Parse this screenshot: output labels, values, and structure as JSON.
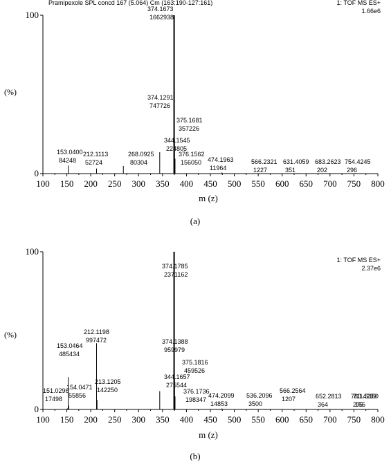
{
  "chart_data": [
    {
      "type": "bar",
      "panel_label": "(a)",
      "header_left": "Pramipexole SPL concd 167 (5.064) Cm (163:190-127:161)",
      "header_right": "1: TOF MS ES+",
      "header_right_sub": "1.66e6",
      "xlabel": "m (z)",
      "ylabel": "(%)",
      "xlim": [
        100,
        800
      ],
      "ylim": [
        0,
        100
      ],
      "xticks": [
        "100",
        "150",
        "200",
        "250",
        "300",
        "350",
        "400",
        "450",
        "500",
        "550",
        "600",
        "650",
        "700",
        "750",
        "800"
      ],
      "yticks": [
        "0",
        "100"
      ],
      "peaks": [
        {
          "x": 153.04,
          "y": 5.1
        },
        {
          "x": 212.11,
          "y": 3.2
        },
        {
          "x": 268.09,
          "y": 4.8
        },
        {
          "x": 344.15,
          "y": 13.5
        },
        {
          "x": 374.13,
          "y": 45.0
        },
        {
          "x": 374.17,
          "y": 100
        },
        {
          "x": 375.17,
          "y": 21.5
        },
        {
          "x": 376.16,
          "y": 9.4
        },
        {
          "x": 474.2,
          "y": 0.7
        },
        {
          "x": 566.23,
          "y": 0.3
        },
        {
          "x": 631.41,
          "y": 0.3
        },
        {
          "x": 683.26,
          "y": 0.3
        },
        {
          "x": 754.42,
          "y": 0.3
        }
      ],
      "annotations": [
        {
          "x": 153.04,
          "mz": "153.0400",
          "int": "84248"
        },
        {
          "x": 212.11,
          "mz": "212.1113",
          "int": "52724"
        },
        {
          "x": 268.09,
          "mz": "268.0925",
          "int": "80304"
        },
        {
          "x": 344.15,
          "mz": "344.1545",
          "int": "224805"
        },
        {
          "x": 374.13,
          "mz": "374.1291",
          "int": "747726"
        },
        {
          "x": 374.17,
          "mz": "374.1673",
          "int": "1662938"
        },
        {
          "x": 375.17,
          "mz": "375.1681",
          "int": "357226"
        },
        {
          "x": 376.16,
          "mz": "376.1562",
          "int": "156050"
        },
        {
          "x": 474.2,
          "mz": "474.1963",
          "int": "11964"
        },
        {
          "x": 566.23,
          "mz": "566.2321",
          "int": "1227"
        },
        {
          "x": 631.41,
          "mz": "631.4059",
          "int": "351"
        },
        {
          "x": 683.26,
          "mz": "683.2623",
          "int": "202"
        },
        {
          "x": 754.42,
          "mz": "754.4245",
          "int": "296"
        }
      ]
    },
    {
      "type": "bar",
      "panel_label": "(b)",
      "header_right": "1: TOF MS ES+",
      "header_right_sub": "2.37e6",
      "xlabel": "m (z)",
      "ylabel": "(%)",
      "xlim": [
        100,
        800
      ],
      "ylim": [
        0,
        100
      ],
      "xticks": [
        "100",
        "150",
        "200",
        "250",
        "300",
        "350",
        "400",
        "450",
        "500",
        "550",
        "600",
        "650",
        "700",
        "750",
        "800"
      ],
      "yticks": [
        "0",
        "100"
      ],
      "peaks": [
        {
          "x": 151.03,
          "y": 0.7
        },
        {
          "x": 153.05,
          "y": 20.5
        },
        {
          "x": 154.05,
          "y": 2.4
        },
        {
          "x": 212.12,
          "y": 42.0
        },
        {
          "x": 213.12,
          "y": 6.0
        },
        {
          "x": 344.17,
          "y": 11.6
        },
        {
          "x": 374.14,
          "y": 40.5
        },
        {
          "x": 374.18,
          "y": 100
        },
        {
          "x": 375.18,
          "y": 19.4
        },
        {
          "x": 376.17,
          "y": 8.3
        },
        {
          "x": 474.21,
          "y": 0.6
        },
        {
          "x": 536.21,
          "y": 0.3
        },
        {
          "x": 566.26,
          "y": 0.3
        },
        {
          "x": 652.28,
          "y": 0.3
        },
        {
          "x": 711.54,
          "y": 0.3
        },
        {
          "x": 780.42,
          "y": 0.3
        }
      ],
      "annotations": [
        {
          "x": 151.03,
          "mz": "151.0296",
          "int": "17498"
        },
        {
          "x": 153.05,
          "mz": "153.0464",
          "int": "485434"
        },
        {
          "x": 154.05,
          "mz": "154.0471",
          "int": "55856"
        },
        {
          "x": 212.12,
          "mz": "212.1198",
          "int": "997472"
        },
        {
          "x": 213.12,
          "mz": "213.1205",
          "int": "142250"
        },
        {
          "x": 344.17,
          "mz": "344.1657",
          "int": "275544"
        },
        {
          "x": 374.14,
          "mz": "374.1388",
          "int": "959979"
        },
        {
          "x": 374.18,
          "mz": "374.1785",
          "int": "2371162"
        },
        {
          "x": 375.18,
          "mz": "375.1816",
          "int": "459526"
        },
        {
          "x": 376.17,
          "mz": "376.1736",
          "int": "198347"
        },
        {
          "x": 474.21,
          "mz": "474.2099",
          "int": "14853"
        },
        {
          "x": 536.21,
          "mz": "536.2096",
          "int": "3500"
        },
        {
          "x": 566.26,
          "mz": "566.2564",
          "int": "1207"
        },
        {
          "x": 652.28,
          "mz": "652.2813",
          "int": "364"
        },
        {
          "x": 711.54,
          "mz": "711.5350",
          "int": "166"
        },
        {
          "x": 780.42,
          "mz": "780.4239",
          "int": "275"
        }
      ]
    }
  ]
}
